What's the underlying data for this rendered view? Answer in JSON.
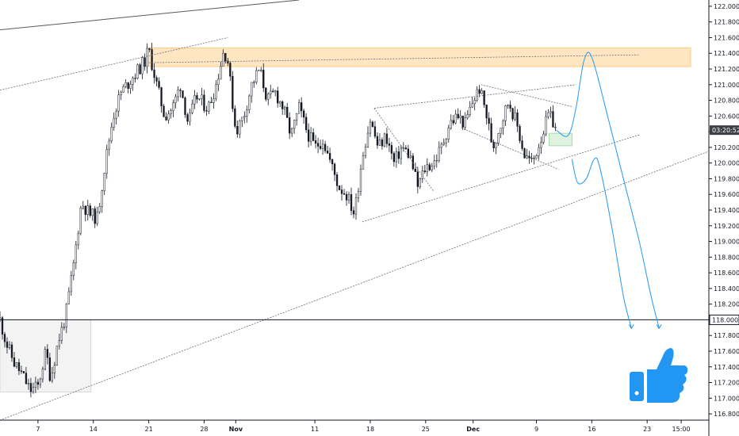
{
  "chart_data": {
    "type": "candlestick",
    "y_ticks": [
      "122.000",
      "121.800",
      "121.600",
      "121.400",
      "121.200",
      "121.000",
      "120.800",
      "120.600",
      "120.400",
      "120.200",
      "120.000",
      "119.800",
      "119.600",
      "119.400",
      "119.200",
      "119.000",
      "118.800",
      "118.600",
      "118.400",
      "118.200",
      "118.000",
      "117.800",
      "117.600",
      "117.400",
      "117.200",
      "117.000",
      "116.800"
    ],
    "ylim": [
      116.72,
      122.08
    ],
    "x_ticks": [
      {
        "label": "7",
        "day": 7,
        "bold": false
      },
      {
        "label": "14",
        "day": 14,
        "bold": false
      },
      {
        "label": "21",
        "day": 21,
        "bold": false
      },
      {
        "label": "28",
        "day": 28,
        "bold": false
      },
      {
        "label": "Nov",
        "day": 32,
        "bold": true
      },
      {
        "label": "11",
        "day": 42,
        "bold": false
      },
      {
        "label": "18",
        "day": 49,
        "bold": false
      },
      {
        "label": "25",
        "day": 56,
        "bold": false
      },
      {
        "label": "Dec",
        "day": 62,
        "bold": true
      },
      {
        "label": "9",
        "day": 70,
        "bold": false
      },
      {
        "label": "16",
        "day": 77,
        "bold": false
      },
      {
        "label": "23",
        "day": 84,
        "bold": false
      },
      {
        "label": "15:00",
        "day": 88.3,
        "bold": false
      }
    ],
    "xlim": [
      2.2,
      91.8
    ],
    "horizontal_level": {
      "price": 118.0,
      "label": "118.000"
    },
    "last_price": {
      "price": 120.42,
      "label": "03:20:52",
      "color": "#3c3f46"
    },
    "price_path": [
      {
        "d": 2.2,
        "p": 118.0
      },
      {
        "d": 3.0,
        "p": 117.7
      },
      {
        "d": 4.0,
        "p": 117.45
      },
      {
        "d": 5.0,
        "p": 117.3
      },
      {
        "d": 6.0,
        "p": 117.1
      },
      {
        "d": 7.0,
        "p": 117.15
      },
      {
        "d": 8.0,
        "p": 117.6
      },
      {
        "d": 8.6,
        "p": 117.25
      },
      {
        "d": 9.5,
        "p": 117.7
      },
      {
        "d": 10.5,
        "p": 118.05
      },
      {
        "d": 11.5,
        "p": 118.7
      },
      {
        "d": 12.5,
        "p": 119.5
      },
      {
        "d": 13.5,
        "p": 119.35
      },
      {
        "d": 14.5,
        "p": 119.3
      },
      {
        "d": 15.5,
        "p": 120.0
      },
      {
        "d": 16.5,
        "p": 120.6
      },
      {
        "d": 17.5,
        "p": 120.9
      },
      {
        "d": 19.0,
        "p": 121.1
      },
      {
        "d": 20.5,
        "p": 121.3
      },
      {
        "d": 21.0,
        "p": 121.45
      },
      {
        "d": 22.0,
        "p": 121.0
      },
      {
        "d": 23.0,
        "p": 120.6
      },
      {
        "d": 24.0,
        "p": 120.7
      },
      {
        "d": 25.0,
        "p": 121.0
      },
      {
        "d": 26.0,
        "p": 120.5
      },
      {
        "d": 27.0,
        "p": 120.85
      },
      {
        "d": 28.5,
        "p": 120.7
      },
      {
        "d": 29.5,
        "p": 121.0
      },
      {
        "d": 30.5,
        "p": 121.45
      },
      {
        "d": 31.0,
        "p": 121.3
      },
      {
        "d": 32.0,
        "p": 120.4
      },
      {
        "d": 33.0,
        "p": 120.6
      },
      {
        "d": 34.0,
        "p": 121.0
      },
      {
        "d": 35.0,
        "p": 121.2
      },
      {
        "d": 36.0,
        "p": 120.8
      },
      {
        "d": 37.0,
        "p": 120.9
      },
      {
        "d": 38.0,
        "p": 120.7
      },
      {
        "d": 39.0,
        "p": 120.35
      },
      {
        "d": 40.0,
        "p": 120.7
      },
      {
        "d": 41.0,
        "p": 120.4
      },
      {
        "d": 42.0,
        "p": 120.2
      },
      {
        "d": 43.0,
        "p": 120.3
      },
      {
        "d": 44.0,
        "p": 120.0
      },
      {
        "d": 45.0,
        "p": 119.7
      },
      {
        "d": 46.0,
        "p": 119.6
      },
      {
        "d": 47.0,
        "p": 119.35
      },
      {
        "d": 48.0,
        "p": 120.1
      },
      {
        "d": 49.0,
        "p": 120.55
      },
      {
        "d": 50.0,
        "p": 120.2
      },
      {
        "d": 51.0,
        "p": 120.35
      },
      {
        "d": 52.0,
        "p": 120.0
      },
      {
        "d": 53.0,
        "p": 120.2
      },
      {
        "d": 54.0,
        "p": 120.1
      },
      {
        "d": 55.0,
        "p": 119.7
      },
      {
        "d": 56.0,
        "p": 119.95
      },
      {
        "d": 57.0,
        "p": 120.0
      },
      {
        "d": 58.0,
        "p": 120.2
      },
      {
        "d": 59.0,
        "p": 120.5
      },
      {
        "d": 60.0,
        "p": 120.6
      },
      {
        "d": 61.0,
        "p": 120.5
      },
      {
        "d": 62.0,
        "p": 120.8
      },
      {
        "d": 62.8,
        "p": 120.95
      },
      {
        "d": 63.5,
        "p": 120.7
      },
      {
        "d": 64.5,
        "p": 120.2
      },
      {
        "d": 65.5,
        "p": 120.5
      },
      {
        "d": 66.5,
        "p": 120.8
      },
      {
        "d": 67.5,
        "p": 120.5
      },
      {
        "d": 68.5,
        "p": 120.1
      },
      {
        "d": 69.5,
        "p": 120.0
      },
      {
        "d": 70.5,
        "p": 120.3
      },
      {
        "d": 71.5,
        "p": 120.6
      },
      {
        "d": 72.0,
        "p": 120.55
      },
      {
        "d": 72.5,
        "p": 120.42
      }
    ],
    "annotations": {
      "resistance_zone": {
        "d1": 21.0,
        "d2": 89.5,
        "p_low": 121.23,
        "p_high": 121.47,
        "color": "#ffa726"
      },
      "support_zone": {
        "d1": 2.2,
        "d2": 13.7,
        "p_low": 117.08,
        "p_high": 118.0,
        "color": "#ebebeb"
      },
      "small_box": {
        "d1": 71.6,
        "d2": 74.5,
        "p_low": 120.22,
        "p_high": 120.38,
        "color": "#4caf50"
      },
      "channel_upper": {
        "d1": 21.0,
        "p1": 121.28,
        "d2": 83.0,
        "p2": 121.38
      },
      "channel_lower": {
        "d1": 48.0,
        "p1": 119.25,
        "d2": 83.0,
        "p2": 120.36
      },
      "upper_trend": {
        "d1": 2.2,
        "p1": 120.93,
        "d2": 31.0,
        "p2": 121.6
      },
      "outer_top_line": {
        "d1": 2.2,
        "p1": 121.7,
        "d2": 40.0,
        "p2": 122.08
      },
      "lower_trend": {
        "d1": 2.2,
        "p1": 116.72,
        "d2": 91.8,
        "p2": 120.15
      },
      "descending_channel_top": {
        "d1": 49.5,
        "p1": 120.7,
        "d2": 75.0,
        "p2": 121.0
      },
      "descending_channel_upper": {
        "d1": 49.5,
        "p1": 120.7,
        "d2": 57.0,
        "p2": 119.64
      },
      "flag_top": {
        "d1": 63.0,
        "p1": 121.0,
        "d2": 74.5,
        "p2": 120.72
      },
      "flag_bottom": {
        "d1": 60.5,
        "p1": 120.45,
        "d2": 72.8,
        "p2": 119.92
      },
      "projection_up": [
        {
          "d": 72.5,
          "p": 120.42
        },
        {
          "d": 74.0,
          "p": 120.35
        },
        {
          "d": 75.0,
          "p": 120.7
        },
        {
          "d": 76.0,
          "p": 121.3
        },
        {
          "d": 77.0,
          "p": 121.35
        },
        {
          "d": 79.0,
          "p": 120.6
        },
        {
          "d": 81.0,
          "p": 119.8
        },
        {
          "d": 83.0,
          "p": 119.0
        },
        {
          "d": 84.5,
          "p": 118.3
        },
        {
          "d": 85.5,
          "p": 117.9
        }
      ],
      "projection_down": [
        {
          "d": 74.5,
          "p": 120.05
        },
        {
          "d": 75.2,
          "p": 119.75
        },
        {
          "d": 76.3,
          "p": 119.8
        },
        {
          "d": 77.3,
          "p": 120.05
        },
        {
          "d": 78.0,
          "p": 119.95
        },
        {
          "d": 79.5,
          "p": 119.2
        },
        {
          "d": 81.0,
          "p": 118.3
        },
        {
          "d": 82.0,
          "p": 117.9
        }
      ],
      "projection_color": "#2196f3",
      "thumbs_up_color": "#2196f3"
    }
  }
}
